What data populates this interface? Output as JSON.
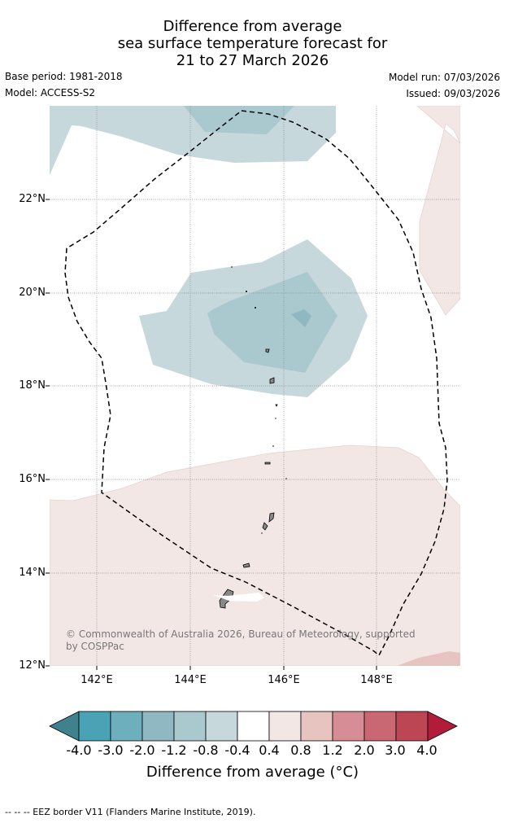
{
  "title": {
    "line1": "Difference from average",
    "line2": "sea surface temperature forecast for",
    "line3": "21 to 27 March 2026"
  },
  "meta": {
    "base_period": "Base period: 1981-2018",
    "model": "Model: ACCESS-S2",
    "model_run": "Model run: 07/03/2026",
    "issued": "Issued: 09/03/2026"
  },
  "axes": {
    "lat_labels": [
      "22°N",
      "20°N",
      "18°N",
      "16°N",
      "14°N",
      "12°N"
    ],
    "lon_labels": [
      "142°E",
      "144°E",
      "146°E",
      "148°E"
    ]
  },
  "copyright": "© Commonwealth of Australia 2026, Bureau of Meteorology, supported by COSPPac",
  "colorbar": {
    "title": "Difference from average (°C)",
    "tick_labels": [
      "-4.0",
      "-3.0",
      "-2.0",
      "-1.2",
      "-0.8",
      "-0.4",
      "0.4",
      "0.8",
      "1.2",
      "2.0",
      "3.0",
      "4.0"
    ],
    "colors": [
      "#3f828d",
      "#4aa3b4",
      "#6eafbe",
      "#8fb8c3",
      "#aac9cf",
      "#c6d8dc",
      "#ffffff",
      "#f3e7e6",
      "#e7c4bf",
      "#d78d95",
      "#c96772",
      "#bd4654",
      "#b31b3a"
    ]
  },
  "footer": "--  --  -- EEZ border V11 (Flanders Marine Institute, 2019)."
}
